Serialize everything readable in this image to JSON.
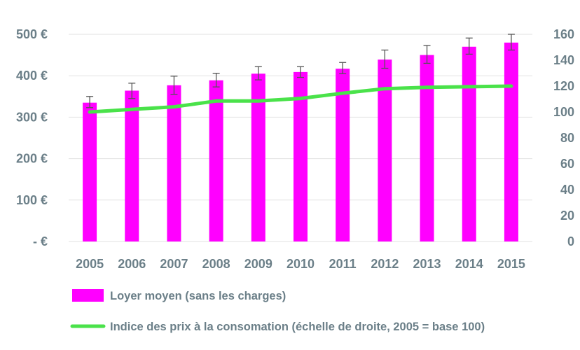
{
  "chart_data": {
    "type": "bar",
    "categories": [
      "2005",
      "2006",
      "2007",
      "2008",
      "2009",
      "2010",
      "2011",
      "2012",
      "2013",
      "2014",
      "2015"
    ],
    "series": [
      {
        "name": "Loyer moyen (sans les charges)",
        "type": "bar",
        "axis": "left",
        "color": "#ff00ff",
        "values": [
          335,
          364,
          377,
          389,
          405,
          409,
          417,
          439,
          450,
          470,
          480
        ],
        "error_low": [
          323,
          345,
          355,
          373,
          390,
          396,
          405,
          418,
          430,
          452,
          462
        ],
        "error_high": [
          350,
          382,
          399,
          406,
          422,
          422,
          432,
          462,
          473,
          491,
          500
        ]
      },
      {
        "name": "Indice des prix à la consomation (échelle de droite, 2005 = base 100)",
        "type": "line",
        "axis": "right",
        "color": "#4ae24a",
        "values": [
          100,
          102,
          104,
          108.5,
          108.5,
          110.5,
          114.5,
          118,
          119,
          119.5,
          120
        ]
      }
    ],
    "y_left": {
      "ylim": [
        0,
        500
      ],
      "ticks": [
        0,
        100,
        200,
        300,
        400,
        500
      ],
      "tick_labels": [
        "-   €",
        "100 €",
        "200 €",
        "300 €",
        "400 €",
        "500 €"
      ]
    },
    "y_right": {
      "ylim": [
        0,
        160
      ],
      "ticks": [
        0,
        20,
        40,
        60,
        80,
        100,
        120,
        140,
        160
      ],
      "tick_labels": [
        "0",
        "20",
        "40",
        "60",
        "80",
        "100",
        "120",
        "140",
        "160"
      ]
    },
    "grid": true,
    "legend_position": "bottom",
    "colors": {
      "grid": "#e2e2e2",
      "text": "#6b7f88",
      "error_bar": "#555555"
    }
  }
}
